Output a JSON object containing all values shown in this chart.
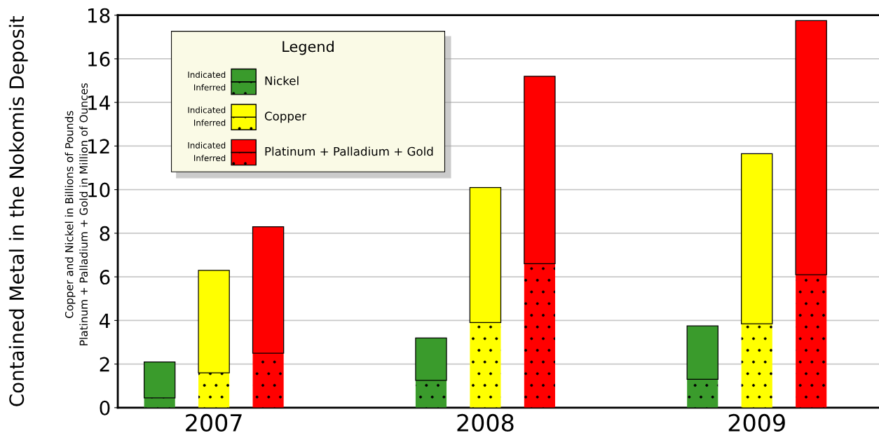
{
  "chart_data": {
    "type": "bar",
    "stacked": true,
    "ylabel": "Contained Metal in the Nokomis Deposit",
    "annotations": [
      "Copper and Nickel in Billions of Pounds\nPlatinum + Palladium + Gold in Million of Ounces",
      "Nickel",
      "Copper",
      "Platinum + Palladium + Gold"
    ],
    "legend_title": "Legend",
    "legend": "top left",
    "grid": "y",
    "categories": [
      null,
      "2007",
      null,
      null,
      "2008",
      null,
      null,
      "2009",
      null
    ],
    "series": [
      {
        "name": "Inferred",
        "colors": [
          "#3a9b2c",
          "#ffff00",
          "#ff0000",
          "#3a9b2c",
          "#ffff00",
          "#ff0000",
          "#3a9b2c",
          "#ffff00",
          "#ff0000"
        ],
        "values": [
          0.45,
          1.6,
          2.5,
          1.25,
          3.9,
          6.6,
          1.3,
          3.85,
          6.1
        ]
      },
      {
        "name": "Indicated",
        "colors": [
          "#3a9b2c",
          "#ffff00",
          "#ff0000",
          "#3a9b2c",
          "#ffff00",
          "#ff0000",
          "#3a9b2c",
          "#ffff00",
          "#ff0000"
        ],
        "values": [
          1.65,
          4.7,
          5.8,
          1.95,
          6.2,
          8.6,
          2.45,
          7.8,
          11.65
        ]
      }
    ],
    "ylim": [
      0,
      18
    ],
    "yticks": [
      0,
      2,
      4,
      6,
      8,
      10,
      12,
      14,
      16,
      18
    ]
  }
}
